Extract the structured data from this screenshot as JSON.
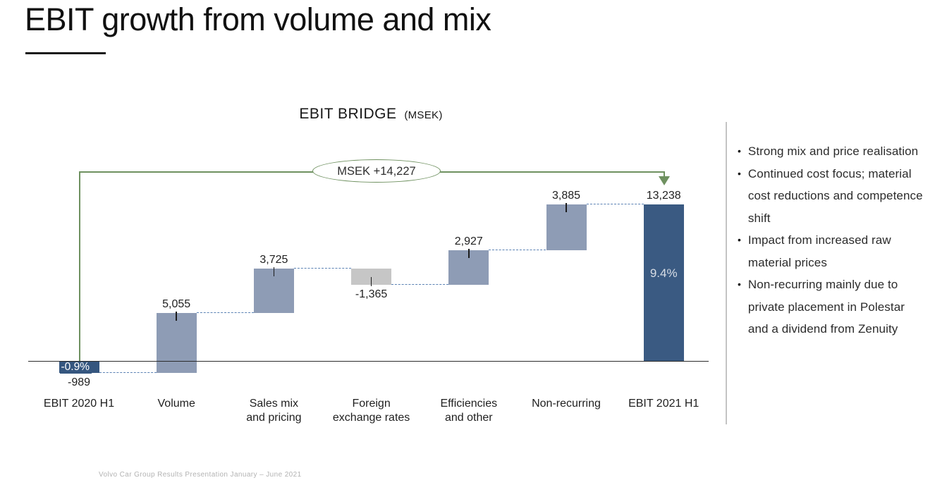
{
  "slide": {
    "title": "EBIT growth from volume and mix",
    "footer": "Volvo Car Group Results Presentation January – June 2021"
  },
  "chart_data": {
    "type": "bar",
    "subtype": "waterfall",
    "title": "EBIT BRIDGE",
    "unit_label": "(MSEK)",
    "total_change_label": "MSEK +14,227",
    "baseline_value": 0,
    "ylim": [
      -989,
      13238
    ],
    "categories": [
      "EBIT 2020 H1",
      "Volume",
      "Sales mix and pricing",
      "Foreign exchange rates",
      "Efficiencies and other",
      "Non-recurring",
      "EBIT 2021 H1"
    ],
    "items": [
      {
        "label": "EBIT 2020 H1",
        "label_lines": [
          "EBIT 2020 H1"
        ],
        "value": -989,
        "display": "-989",
        "kind": "start",
        "annotation": "-0.9%"
      },
      {
        "label": "Volume",
        "label_lines": [
          "Volume"
        ],
        "value": 5055,
        "display": "5,055",
        "kind": "delta"
      },
      {
        "label": "Sales mix and pricing",
        "label_lines": [
          "Sales mix",
          "and pricing"
        ],
        "value": 3725,
        "display": "3,725",
        "kind": "delta"
      },
      {
        "label": "Foreign exchange rates",
        "label_lines": [
          "Foreign",
          "exchange rates"
        ],
        "value": -1365,
        "display": "-1,365",
        "kind": "delta"
      },
      {
        "label": "Efficiencies and other",
        "label_lines": [
          "Efficiencies",
          "and other"
        ],
        "value": 2927,
        "display": "2,927",
        "kind": "delta"
      },
      {
        "label": "Non-recurring",
        "label_lines": [
          "Non-recurring"
        ],
        "value": 3885,
        "display": "3,885",
        "kind": "delta"
      },
      {
        "label": "EBIT 2021 H1",
        "label_lines": [
          "EBIT 2021 H1"
        ],
        "value": 13238,
        "display": "13,238",
        "kind": "total",
        "annotation": "9.4%"
      }
    ],
    "colors": {
      "positive_bar": "#8e9cb5",
      "negative_bar": "#c6c6c6",
      "start_bar": "#35567f",
      "total_bar": "#3a5a82",
      "connector": "#5b82b4",
      "arrow": "#6f9160"
    },
    "legend": "none",
    "grid": "off"
  },
  "notes": {
    "bullets": [
      "Strong mix and price realisation",
      "Continued cost focus; material cost reductions and competence shift",
      "Impact from increased raw material prices",
      "Non-recurring mainly due to private placement in Polestar and a dividend from Zenuity"
    ]
  }
}
